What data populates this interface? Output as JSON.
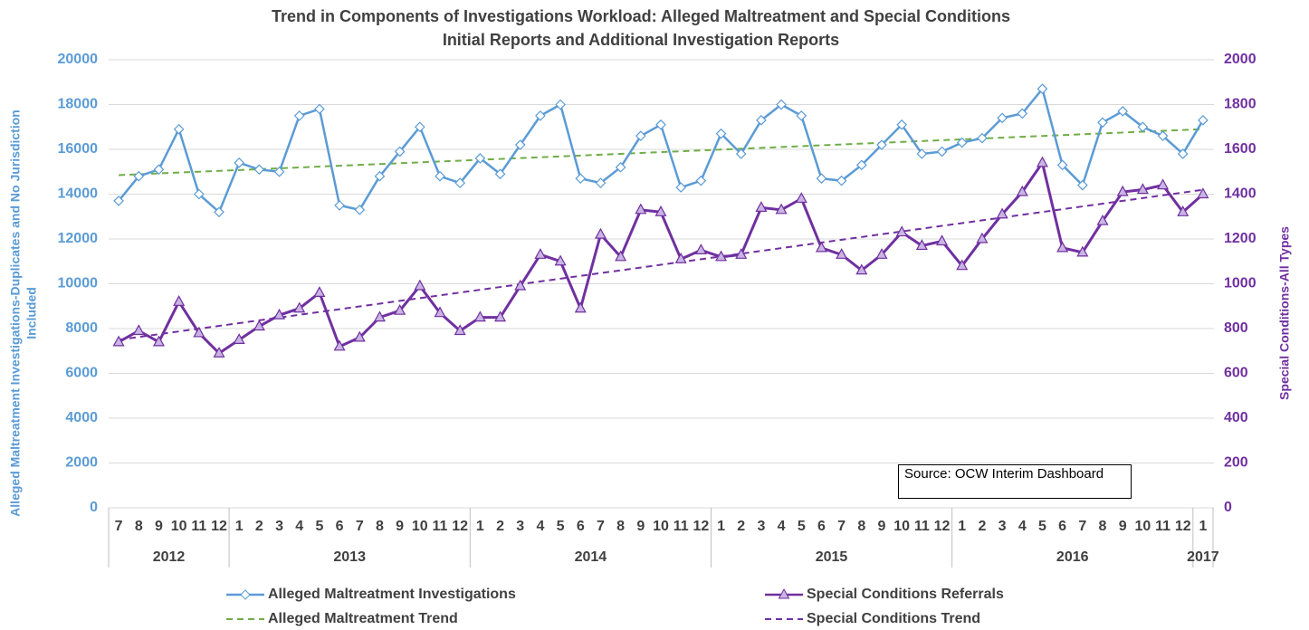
{
  "chart_data": {
    "type": "line",
    "title": "Trend in Components of Investigations Workload: Alleged Maltreatment and Special Conditions",
    "subtitle": "Initial Reports and Additional Investigation Reports",
    "ylabel": [
      "Alleged Maltreatment Investigations-Duplicates and No Jurisdiction",
      "Included"
    ],
    "y2label": "Special Conditions-All Types",
    "annotation": "Source: OCW Interim Dashboard",
    "category_groups": [
      {
        "label": "2012",
        "categories": [
          "7",
          "8",
          "9",
          "10",
          "11",
          "12"
        ]
      },
      {
        "label": "2013",
        "categories": [
          "1",
          "2",
          "3",
          "4",
          "5",
          "6",
          "7",
          "8",
          "9",
          "10",
          "11",
          "12"
        ]
      },
      {
        "label": "2014",
        "categories": [
          "1",
          "2",
          "3",
          "4",
          "5",
          "6",
          "7",
          "8",
          "9",
          "10",
          "11",
          "12"
        ]
      },
      {
        "label": "2015",
        "categories": [
          "1",
          "2",
          "3",
          "4",
          "5",
          "6",
          "7",
          "8",
          "9",
          "10",
          "11",
          "12"
        ]
      },
      {
        "label": "2016",
        "categories": [
          "1",
          "2",
          "3",
          "4",
          "5",
          "6",
          "7",
          "8",
          "9",
          "10",
          "11",
          "12"
        ]
      },
      {
        "label": "2017",
        "categories": [
          "1"
        ]
      }
    ],
    "ylim": [
      0,
      20000
    ],
    "yticks": [
      0,
      2000,
      4000,
      6000,
      8000,
      10000,
      12000,
      14000,
      16000,
      18000,
      20000
    ],
    "y2lim": [
      0,
      2000
    ],
    "y2ticks": [
      0,
      200,
      400,
      600,
      800,
      1000,
      1200,
      1400,
      1600,
      1800,
      2000
    ],
    "grid": true,
    "series": [
      {
        "name": "Alleged Maltreatment Investigations",
        "color": "#5b9bd5",
        "marker": "diamond",
        "values": [
          13700,
          14800,
          15100,
          16900,
          14000,
          13200,
          15400,
          15100,
          15000,
          17500,
          17800,
          13500,
          13300,
          14800,
          15900,
          17000,
          14800,
          14500,
          15600,
          14900,
          16200,
          17500,
          18000,
          14700,
          14500,
          15200,
          16600,
          17100,
          14300,
          14600,
          16700,
          15800,
          17300,
          18000,
          17500,
          14700,
          14600,
          15300,
          16200,
          17100,
          15800,
          15900,
          16300,
          16500,
          17400,
          17600,
          18700,
          15300,
          14400,
          17200,
          17700,
          17000,
          16600,
          15800,
          17300
        ]
      },
      {
        "name": "Special Conditions Referrals",
        "color": "#7030a0",
        "marker": "triangle",
        "axis": "y2",
        "values": [
          740,
          790,
          740,
          920,
          780,
          690,
          750,
          810,
          860,
          890,
          960,
          720,
          760,
          850,
          880,
          990,
          870,
          790,
          850,
          850,
          990,
          1130,
          1100,
          890,
          1220,
          1120,
          1330,
          1320,
          1110,
          1150,
          1120,
          1130,
          1340,
          1330,
          1380,
          1160,
          1130,
          1060,
          1130,
          1230,
          1170,
          1190,
          1080,
          1200,
          1310,
          1410,
          1540,
          1160,
          1140,
          1280,
          1410,
          1420,
          1440,
          1320,
          1400
        ]
      },
      {
        "name": "Alleged Maltreatment Trend",
        "color": "#70ad47",
        "dashed": true,
        "values": [
          14850,
          14888,
          14926,
          14964,
          15002,
          15040,
          15078,
          15116,
          15154,
          15192,
          15230,
          15268,
          15306,
          15344,
          15382,
          15420,
          15458,
          15496,
          15534,
          15572,
          15610,
          15648,
          15686,
          15724,
          15762,
          15800,
          15838,
          15876,
          15914,
          15952,
          15990,
          16028,
          16066,
          16104,
          16142,
          16180,
          16218,
          16256,
          16294,
          16332,
          16370,
          16408,
          16446,
          16484,
          16522,
          16560,
          16598,
          16636,
          16674,
          16712,
          16750,
          16788,
          16826,
          16864,
          16902
        ]
      },
      {
        "name": "Special Conditions Trend",
        "color": "#7030a0",
        "dashed": true,
        "axis": "y2",
        "values": [
          750,
          762.4,
          774.8,
          787.2,
          799.6,
          812,
          824.4,
          836.8,
          849.2,
          861.6,
          874,
          886.4,
          898.8,
          911.2,
          923.6,
          936,
          948.4,
          960.8,
          973.2,
          985.6,
          998,
          1010.4,
          1022.8,
          1035.2,
          1047.6,
          1060,
          1072.4,
          1084.8,
          1097.2,
          1109.6,
          1122,
          1134.4,
          1146.8,
          1159.2,
          1171.6,
          1184,
          1196.4,
          1208.8,
          1221.2,
          1233.6,
          1246,
          1258.4,
          1270.8,
          1283.2,
          1295.6,
          1308,
          1320.4,
          1332.8,
          1345.2,
          1357.6,
          1370,
          1382.4,
          1394.8,
          1407.2,
          1419.6
        ]
      }
    ]
  }
}
